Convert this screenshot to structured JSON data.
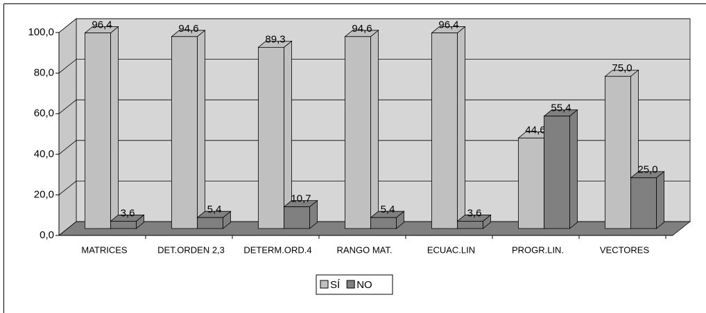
{
  "chart_data": {
    "type": "bar",
    "categories": [
      "MATRICES",
      "DET.ORDEN 2,3",
      "DETERM.ORD.4",
      "RANGO MAT.",
      "ECUAC.LIN",
      "PROGR.LIN.",
      "VECTORES"
    ],
    "series": [
      {
        "name": "SÍ",
        "color": "#c0c0c0",
        "values": [
          96.4,
          94.6,
          89.3,
          94.6,
          96.4,
          44.6,
          75.0
        ],
        "value_labels": [
          "96,4",
          "94,6",
          "89,3",
          "94,6",
          "96,4",
          "44,6",
          "75,0"
        ]
      },
      {
        "name": "NO",
        "color": "#808080",
        "values": [
          3.6,
          5.4,
          10.7,
          5.4,
          3.6,
          55.4,
          25.0
        ],
        "value_labels": [
          "3,6",
          "5,4",
          "10,7",
          "5,4",
          "3,6",
          "55,4",
          "25,0"
        ]
      }
    ],
    "ylim": [
      0,
      100
    ],
    "yticks": [
      {
        "value": 0,
        "label": "0,0"
      },
      {
        "value": 20,
        "label": "20,0"
      },
      {
        "value": 40,
        "label": "40,0"
      },
      {
        "value": 60,
        "label": "60,0"
      },
      {
        "value": 80,
        "label": "80,0"
      },
      {
        "value": 100,
        "label": "100,0"
      }
    ],
    "grid": true,
    "legend": "bottom"
  }
}
